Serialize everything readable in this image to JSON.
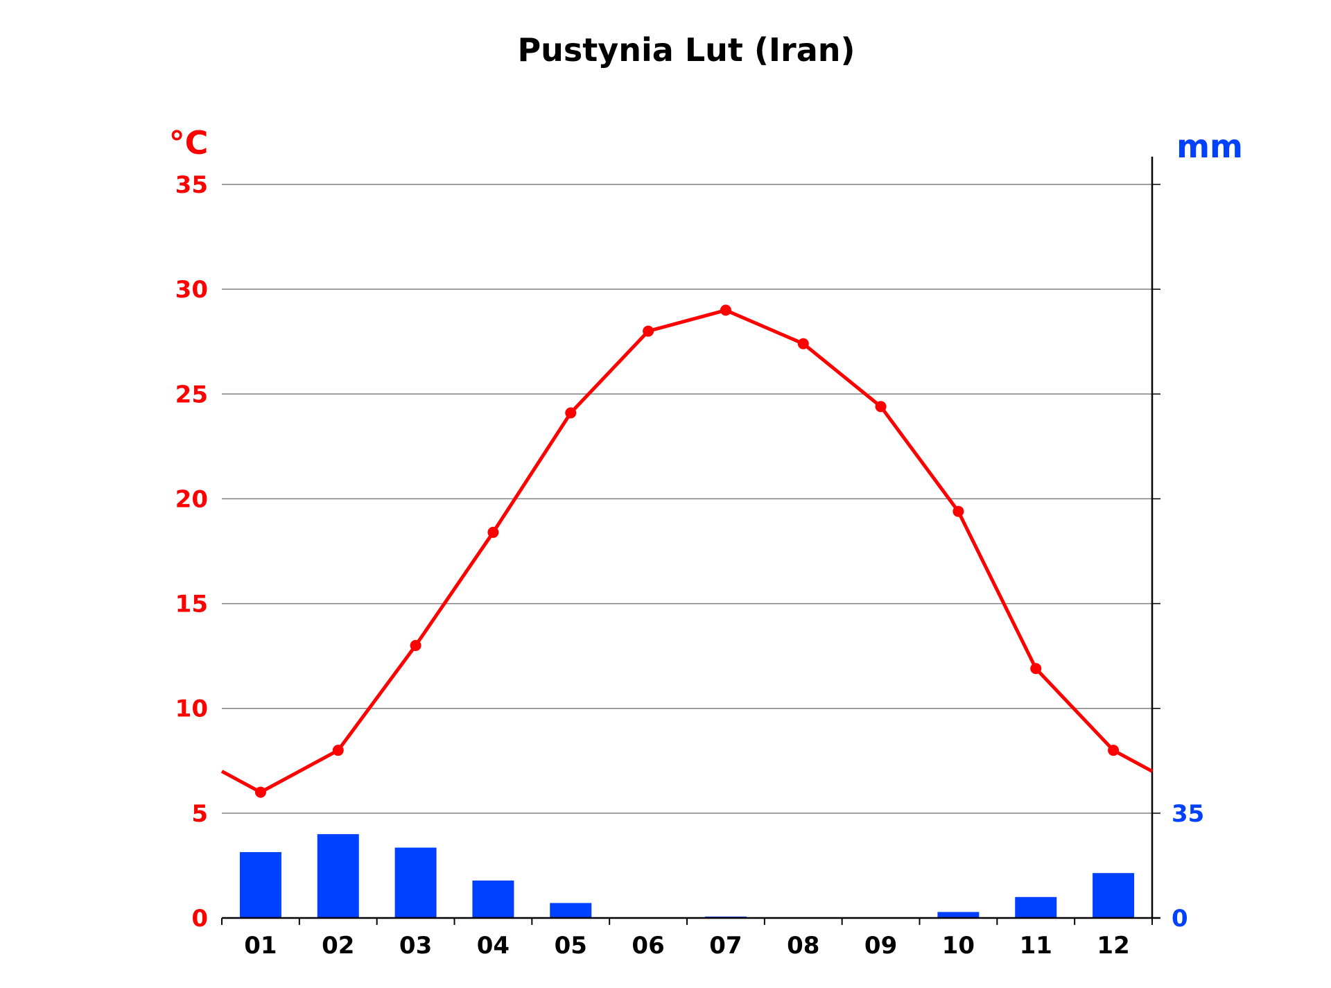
{
  "chart_data": {
    "type": "bar+line",
    "title": "Pustynia Lut (Iran)",
    "categories": [
      "01",
      "02",
      "03",
      "04",
      "05",
      "06",
      "07",
      "08",
      "09",
      "10",
      "11",
      "12"
    ],
    "temperature": {
      "unit": "°C",
      "values": [
        6.0,
        8.0,
        13.0,
        18.4,
        24.1,
        28.0,
        29.0,
        27.4,
        24.4,
        19.4,
        11.9,
        8.0
      ],
      "ylim": [
        0,
        35
      ],
      "ticks": [
        "0",
        "5",
        "10",
        "15",
        "20",
        "25",
        "30",
        "35"
      ],
      "tick_values": [
        0,
        5,
        10,
        15,
        20,
        25,
        30,
        35
      ]
    },
    "precipitation": {
      "unit": "mm",
      "values": [
        22.0,
        28.0,
        23.5,
        12.5,
        5.0,
        0.0,
        0.3,
        0.0,
        0.0,
        2.0,
        7.0,
        15.0
      ],
      "ylim": [
        0,
        245
      ],
      "ticks": [
        "0",
        "35"
      ],
      "tick_values": [
        0,
        35
      ]
    },
    "grid": true,
    "colors": {
      "temperature": "#ff0000",
      "precipitation": "#0040ff",
      "grid": "#808080",
      "axis": "#000000"
    }
  }
}
